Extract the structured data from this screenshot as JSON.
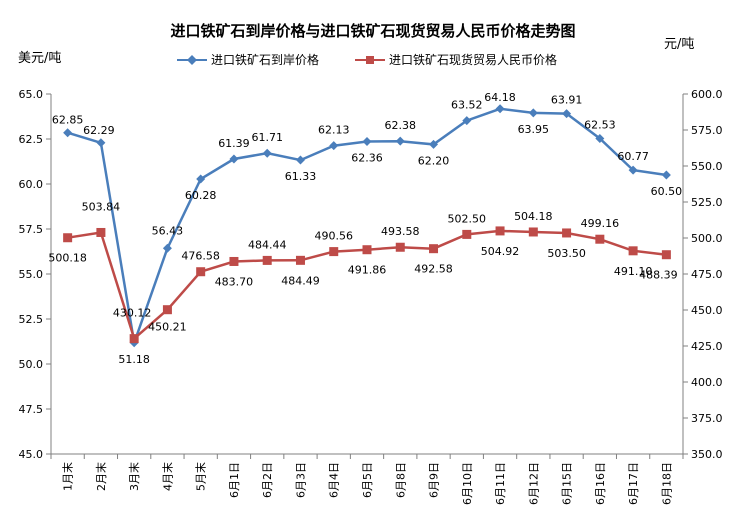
{
  "chart_data": {
    "type": "line",
    "title": "进口铁矿石到岸价格与进口铁矿石现货贸易人民币价格走势图",
    "y_left_unit": "美元/吨",
    "y_right_unit": "元/吨",
    "categories": [
      "1月末",
      "2月末",
      "3月末",
      "4月末",
      "5月末",
      "6月1日",
      "6月2日",
      "6月3日",
      "6月4日",
      "6月5日",
      "6月8日",
      "6月9日",
      "6月10日",
      "6月11日",
      "6月12日",
      "6月15日",
      "6月16日",
      "6月17日",
      "6月18日"
    ],
    "y_left_ticks": [
      "45.0",
      "47.5",
      "50.0",
      "52.5",
      "55.0",
      "57.5",
      "60.0",
      "62.5",
      "65.0"
    ],
    "y_right_ticks": [
      "350.0",
      "375.0",
      "400.0",
      "425.0",
      "450.0",
      "475.0",
      "500.0",
      "525.0",
      "550.0",
      "575.0",
      "600.0"
    ],
    "y_left_range": [
      45,
      65
    ],
    "y_right_range": [
      350,
      600
    ],
    "grid": false,
    "legend_position": "top",
    "series": [
      {
        "name": "进口铁矿石到岸价格",
        "axis": "left",
        "color": "#4A7EBB",
        "marker": "diamond",
        "values": [
          62.85,
          62.29,
          51.18,
          56.43,
          60.28,
          61.39,
          61.71,
          61.33,
          62.13,
          62.36,
          62.38,
          62.2,
          63.52,
          64.18,
          63.95,
          63.91,
          62.53,
          60.77,
          60.5
        ],
        "labels": [
          "62.85",
          "62.29",
          "51.18",
          "56.43",
          "60.28",
          "61.39",
          "61.71",
          "61.33",
          "62.13",
          "62.36",
          "62.38",
          "62.20",
          "63.52",
          "64.18",
          "63.95",
          "63.91",
          "62.53",
          "60.77",
          "60.50"
        ]
      },
      {
        "name": "进口铁矿石现货贸易人民币价格",
        "axis": "right",
        "color": "#BE4B48",
        "marker": "square",
        "values": [
          500.18,
          503.84,
          430.12,
          450.21,
          476.58,
          483.7,
          484.44,
          484.49,
          490.56,
          491.86,
          493.58,
          492.58,
          502.5,
          504.92,
          504.18,
          503.5,
          499.16,
          491.1,
          488.39
        ],
        "labels": [
          "500.18",
          "503.84",
          "430.12",
          "450.21",
          "476.58",
          "483.70",
          "484.44",
          "484.49",
          "490.56",
          "491.86",
          "493.58",
          "492.58",
          "502.50",
          "504.92",
          "504.18",
          "503.50",
          "499.16",
          "491.10",
          "488.39"
        ]
      }
    ]
  }
}
